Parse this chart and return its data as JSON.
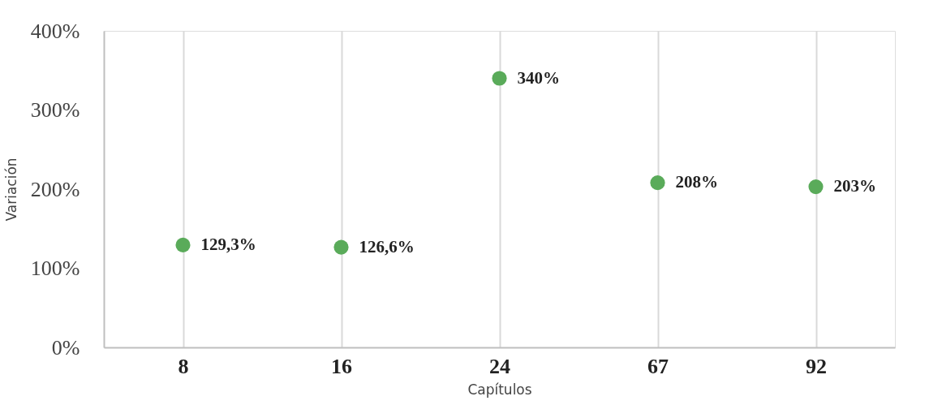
{
  "chart_data": {
    "type": "scatter",
    "xlabel": "Capítulos",
    "ylabel": "Variación",
    "categories": [
      "8",
      "16",
      "24",
      "67",
      "92"
    ],
    "series": [
      {
        "color": "#5aab5a",
        "values": [
          129.3,
          126.6,
          340,
          208,
          203
        ],
        "value_labels": [
          "129,3%",
          "126,6%",
          "340%",
          "208%",
          "203%"
        ]
      }
    ],
    "ylim": [
      0,
      400
    ],
    "yticks": [
      {
        "value": 0,
        "label": "0%"
      },
      {
        "value": 100,
        "label": "100%"
      },
      {
        "value": 200,
        "label": "200%"
      },
      {
        "value": 300,
        "label": "300%"
      },
      {
        "value": 400,
        "label": "400%"
      }
    ],
    "grid": "x",
    "marker": "circle",
    "legend": false
  }
}
